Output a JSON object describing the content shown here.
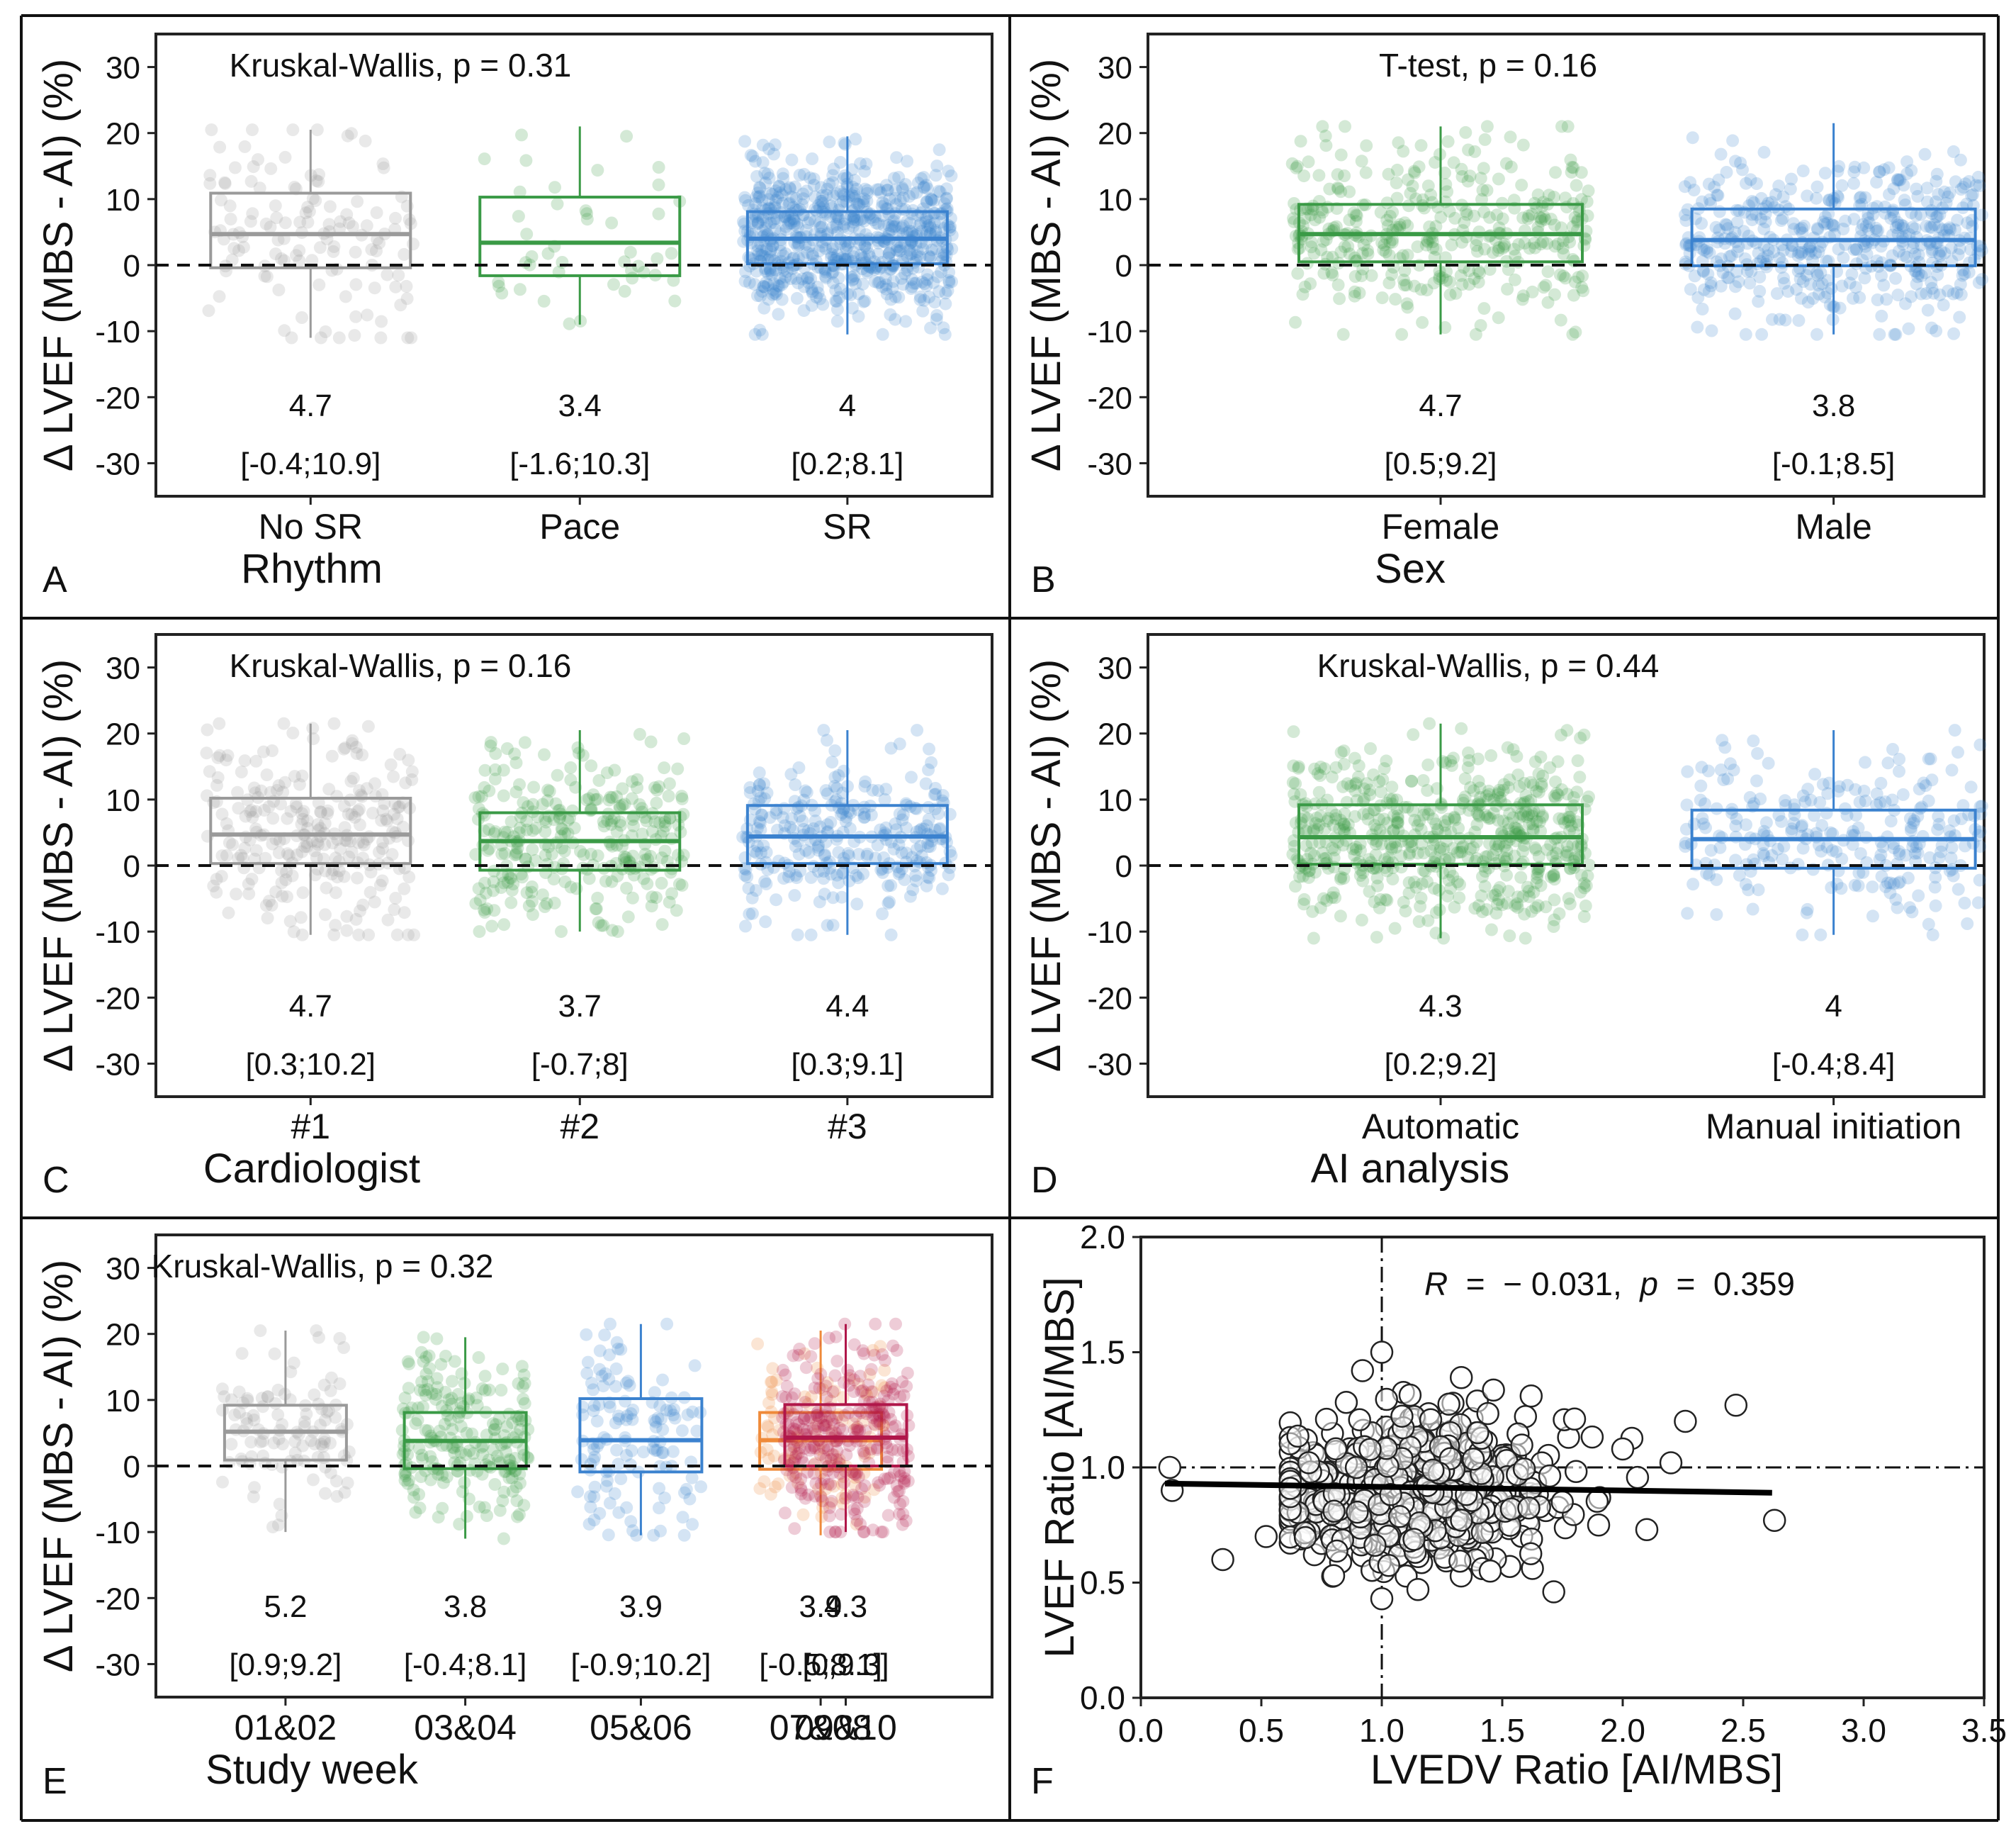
{
  "chart_data": [
    {
      "type": "box",
      "panel_letter": "A",
      "test_label": "Kruskal-Wallis, p = 0.31",
      "ylabel": "Δ LVEF (MBS - AI) (%)",
      "xlabel": "Rhythm",
      "ylim": [
        -35,
        35
      ],
      "yticks": [
        30,
        20,
        10,
        0,
        -10,
        -20,
        -30
      ],
      "ytick_labels": [
        "30",
        "20",
        "10",
        "0",
        "-10",
        "-20",
        "-30"
      ],
      "groups": [
        {
          "label": "No SR",
          "color": "#9a9a9a",
          "median": 4.7,
          "q1": -0.4,
          "q3": 10.9,
          "wlo": -11,
          "whi": 20.5,
          "n": 130,
          "median_text": "4.7",
          "iqr_text": "[-0.4;10.9]"
        },
        {
          "label": "Pace",
          "color": "#3a9a46",
          "median": 3.4,
          "q1": -1.6,
          "q3": 10.3,
          "wlo": -9,
          "whi": 21,
          "n": 45,
          "median_text": "3.4",
          "iqr_text": "[-1.6;10.3]"
        },
        {
          "label": "SR",
          "color": "#3b82cf",
          "median": 4.0,
          "q1": 0.2,
          "q3": 8.1,
          "wlo": -10.5,
          "whi": 19.5,
          "n": 700,
          "median_text": "4",
          "iqr_text": "[0.2;8.1]"
        }
      ]
    },
    {
      "type": "box",
      "panel_letter": "B",
      "test_label": "T-test, p = 0.16",
      "ylabel": "Δ LVEF (MBS - AI) (%)",
      "xlabel": "Sex",
      "ylim": [
        -35,
        35
      ],
      "yticks": [
        30,
        20,
        10,
        0,
        -10,
        -20,
        -30
      ],
      "ytick_labels": [
        "30",
        "20",
        "10",
        "0",
        "-10",
        "-20",
        "-30"
      ],
      "groups": [
        {
          "label": "Female",
          "color": "#3a9a46",
          "median": 4.7,
          "q1": 0.5,
          "q3": 9.2,
          "wlo": -10.5,
          "whi": 21,
          "n": 380,
          "median_text": "4.7",
          "iqr_text": "[0.5;9.2]"
        },
        {
          "label": "Male",
          "color": "#3b82cf",
          "median": 3.8,
          "q1": -0.1,
          "q3": 8.5,
          "wlo": -10.5,
          "whi": 21.5,
          "n": 480,
          "median_text": "3.8",
          "iqr_text": "[-0.1;8.5]"
        }
      ]
    },
    {
      "type": "box",
      "panel_letter": "C",
      "test_label": "Kruskal-Wallis, p = 0.16",
      "ylabel": "Δ LVEF (MBS - AI) (%)",
      "xlabel": "Cardiologist",
      "ylim": [
        -35,
        35
      ],
      "yticks": [
        30,
        20,
        10,
        0,
        -10,
        -20,
        -30
      ],
      "ytick_labels": [
        "30",
        "20",
        "10",
        "0",
        "-10",
        "-20",
        "-30"
      ],
      "groups": [
        {
          "label": "#1",
          "color": "#9a9a9a",
          "median": 4.7,
          "q1": 0.3,
          "q3": 10.2,
          "wlo": -10.5,
          "whi": 21.5,
          "n": 260,
          "median_text": "4.7",
          "iqr_text": "[0.3;10.2]"
        },
        {
          "label": "#2",
          "color": "#3a9a46",
          "median": 3.7,
          "q1": -0.7,
          "q3": 8.0,
          "wlo": -10,
          "whi": 20.5,
          "n": 300,
          "median_text": "3.7",
          "iqr_text": "[-0.7;8]"
        },
        {
          "label": "#3",
          "color": "#3b82cf",
          "median": 4.4,
          "q1": 0.3,
          "q3": 9.1,
          "wlo": -10.5,
          "whi": 20.5,
          "n": 300,
          "median_text": "4.4",
          "iqr_text": "[0.3;9.1]"
        }
      ]
    },
    {
      "type": "box",
      "panel_letter": "D",
      "test_label": "Kruskal-Wallis, p = 0.44",
      "ylabel": "Δ LVEF (MBS - AI) (%)",
      "xlabel": "AI analysis",
      "ylim": [
        -35,
        35
      ],
      "yticks": [
        30,
        20,
        10,
        0,
        -10,
        -20,
        -30
      ],
      "ytick_labels": [
        "30",
        "20",
        "10",
        "0",
        "-10",
        "-20",
        "-30"
      ],
      "groups": [
        {
          "label": "Automatic",
          "color": "#3a9a46",
          "median": 4.3,
          "q1": 0.2,
          "q3": 9.2,
          "wlo": -11,
          "whi": 21.5,
          "n": 600,
          "median_text": "4.3",
          "iqr_text": "[0.2;9.2]"
        },
        {
          "label": "Manual initiation",
          "color": "#3b82cf",
          "median": 4.0,
          "q1": -0.4,
          "q3": 8.4,
          "wlo": -10.5,
          "whi": 20.5,
          "n": 260,
          "median_text": "4",
          "iqr_text": "[-0.4;8.4]"
        }
      ]
    },
    {
      "type": "box",
      "panel_letter": "E",
      "test_label": "Kruskal-Wallis, p = 0.32",
      "ylabel": "Δ LVEF (MBS - AI) (%)",
      "xlabel": "Study week",
      "ylim": [
        -35,
        35
      ],
      "yticks": [
        30,
        20,
        10,
        0,
        -10,
        -20,
        -30
      ],
      "ytick_labels": [
        "30",
        "20",
        "10",
        "0",
        "-10",
        "-20",
        "-30"
      ],
      "groups": [
        {
          "label": "01&02",
          "color": "#9a9a9a",
          "median": 5.2,
          "q1": 0.9,
          "q3": 9.2,
          "wlo": -10,
          "whi": 20.5,
          "n": 110,
          "median_text": "5.2",
          "iqr_text": "[0.9;9.2]"
        },
        {
          "label": "03&04",
          "color": "#3a9a46",
          "median": 3.8,
          "q1": -0.4,
          "q3": 8.1,
          "wlo": -11,
          "whi": 19.5,
          "n": 220,
          "median_text": "3.8",
          "iqr_text": "[-0.4;8.1]"
        },
        {
          "label": "05&06",
          "color": "#3b82cf",
          "median": 3.9,
          "q1": -0.9,
          "q3": 10.2,
          "wlo": -10.5,
          "whi": 21.5,
          "n": 130,
          "median_text": "3.9",
          "iqr_text": "[-0.9;10.2]"
        },
        {
          "label": "07&08",
          "color": "#ef8a3a",
          "median": 3.9,
          "q1": -0.5,
          "q3": 8.1,
          "wlo": -10.5,
          "whi": 20.5,
          "n": 110,
          "median_text": "3.9",
          "iqr_text": "[-0.5;8.1]"
        },
        {
          "label": "09&10",
          "color": "#b0174a",
          "median": 4.3,
          "q1": 0.0,
          "q3": 9.3,
          "wlo": -10,
          "whi": 21.5,
          "n": 300,
          "median_text": "4.3",
          "iqr_text": "[0;9.3]"
        }
      ]
    },
    {
      "type": "scatter",
      "panel_letter": "F",
      "ylabel": "LVEF Ratio [AI/MBS]",
      "xlabel": "LVEDV Ratio [AI/MBS]",
      "annotation": {
        "r_symbol": "R",
        "eq": "=",
        "r_value": "− 0.031,",
        "p_symbol": "p",
        "eq2": "=",
        "p_value": "0.359"
      },
      "xlim": [
        0.0,
        3.5
      ],
      "ylim": [
        0.0,
        2.0
      ],
      "xticks": [
        0.0,
        0.5,
        1.0,
        1.5,
        2.0,
        2.5,
        3.0,
        3.5
      ],
      "xtick_labels": [
        "0.0",
        "0.5",
        "1.0",
        "1.5",
        "2.0",
        "2.5",
        "3.0",
        "3.5"
      ],
      "yticks": [
        0.0,
        0.5,
        1.0,
        1.5,
        2.0
      ],
      "ytick_labels": [
        "0.0",
        "0.5",
        "1.0",
        "1.5",
        "2.0"
      ],
      "reference_x": 1.0,
      "reference_y": 1.0,
      "regression": {
        "x": [
          0.1,
          2.62
        ],
        "y": [
          0.93,
          0.89
        ]
      },
      "n_points": 520,
      "x_center": 1.15,
      "y_center": 0.9,
      "highlighted_points": [
        {
          "x": 0.12,
          "y": 1.0
        },
        {
          "x": 0.13,
          "y": 0.9
        },
        {
          "x": 0.34,
          "y": 0.6
        },
        {
          "x": 0.52,
          "y": 0.7
        },
        {
          "x": 1.0,
          "y": 1.5
        },
        {
          "x": 1.0,
          "y": 0.43
        },
        {
          "x": 2.26,
          "y": 1.2
        },
        {
          "x": 2.47,
          "y": 1.27
        },
        {
          "x": 2.63,
          "y": 0.77
        },
        {
          "x": 0.92,
          "y": 1.42
        },
        {
          "x": 1.33,
          "y": 1.39
        },
        {
          "x": 1.62,
          "y": 1.31
        },
        {
          "x": 1.8,
          "y": 1.21
        },
        {
          "x": 2.0,
          "y": 1.08
        },
        {
          "x": 2.2,
          "y": 1.02
        },
        {
          "x": 1.9,
          "y": 0.75
        },
        {
          "x": 2.1,
          "y": 0.73
        },
        {
          "x": 0.8,
          "y": 0.53
        },
        {
          "x": 1.15,
          "y": 0.47
        },
        {
          "x": 1.45,
          "y": 0.55
        }
      ]
    }
  ]
}
